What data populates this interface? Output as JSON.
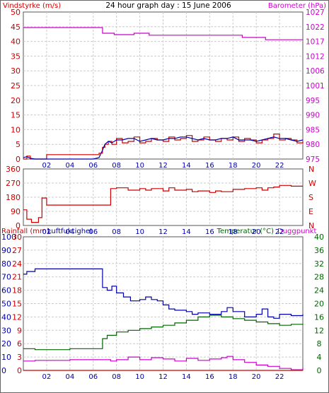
{
  "header": {
    "title": "24 hour graph day : 15 June 2006",
    "left_label": "Vindstyrke (m/s)",
    "right_label": "Barometer (hPa)"
  },
  "colors": {
    "wind": "#cc0000",
    "gust": "#0000aa",
    "barometer": "#cc00cc",
    "direction": "#cc0000",
    "humidity": "#0000aa",
    "temperature": "#006600",
    "dewpoint": "#cc00cc",
    "rain": "#cc0000",
    "frame": "#555555",
    "grid": "#cccccc",
    "xtick": "#0000aa"
  },
  "chart_data": [
    {
      "type": "line",
      "title": "24 hour graph day : 15 June 2006",
      "x_ticks": [
        "02",
        "04",
        "06",
        "08",
        "10",
        "12",
        "14",
        "16",
        "18",
        "20",
        "22"
      ],
      "xlim": [
        0,
        24
      ],
      "y_left": {
        "label": "Vindstyrke (m/s)",
        "ticks": [
          "0",
          "5",
          "10",
          "15",
          "20",
          "25",
          "30",
          "35",
          "40",
          "45",
          "50"
        ],
        "ylim": [
          0,
          50
        ]
      },
      "y_right": {
        "label": "Barometer (hPa)",
        "ticks": [
          "975",
          "980",
          "985",
          "990",
          "995",
          "1001",
          "1006",
          "1012",
          "1017",
          "1022",
          "1027"
        ],
        "ylim": [
          975,
          1027
        ]
      },
      "series": [
        {
          "key": "wind",
          "axis": "left",
          "step": true,
          "x": [
            0,
            0.3,
            0.6,
            1,
            2,
            3,
            4,
            5,
            6,
            6.5,
            6.8,
            7,
            7.3,
            7.6,
            8,
            8.5,
            9,
            9.5,
            10,
            10.5,
            11,
            11.5,
            12,
            12.5,
            13,
            13.5,
            14,
            14.5,
            15,
            15.5,
            16,
            16.5,
            17,
            17.5,
            18,
            18.5,
            19,
            19.5,
            20,
            20.5,
            21,
            21.5,
            22,
            22.5,
            23,
            23.5,
            24
          ],
          "y": [
            0,
            1,
            0,
            0,
            1.5,
            1.5,
            1.5,
            1.5,
            1.5,
            2,
            4,
            5,
            6,
            5,
            7,
            5.5,
            6,
            7.5,
            5.5,
            6,
            7,
            6.5,
            6,
            7.5,
            6.5,
            7,
            8,
            6,
            6.5,
            7.5,
            6.5,
            6,
            7,
            6.5,
            7.5,
            6,
            7,
            6.5,
            5.5,
            6.5,
            7,
            8.5,
            6.5,
            7,
            6.5,
            5.5,
            6
          ]
        },
        {
          "key": "gust",
          "axis": "left",
          "step": false,
          "x": [
            0,
            0.3,
            0.6,
            1,
            2,
            3,
            4,
            5,
            6,
            6.5,
            6.8,
            7,
            7.3,
            7.6,
            8,
            8.5,
            9,
            9.5,
            10,
            10.5,
            11,
            11.5,
            12,
            12.5,
            13,
            13.5,
            14,
            14.5,
            15,
            15.5,
            16,
            16.5,
            17,
            17.5,
            18,
            18.5,
            19,
            19.5,
            20,
            20.5,
            21,
            21.5,
            22,
            22.5,
            23,
            23.5,
            24
          ],
          "y": [
            0.5,
            0.8,
            0.3,
            0,
            0,
            0,
            0,
            0,
            0,
            0.5,
            3,
            5,
            6,
            5.5,
            6.5,
            6.5,
            7,
            7,
            6,
            6.5,
            7,
            6.5,
            6.5,
            7,
            7,
            7.5,
            7.5,
            7,
            6.5,
            7,
            6.5,
            6.5,
            7,
            7,
            7.5,
            6.5,
            6.5,
            6.5,
            6,
            6.5,
            7,
            7.5,
            7,
            7,
            6.5,
            6,
            6.5
          ]
        },
        {
          "key": "barometer",
          "axis": "right",
          "step": true,
          "x": [
            0,
            6.8,
            7.8,
            9.5,
            10.8,
            18.8,
            20.8,
            24
          ],
          "y": [
            1021.5,
            1019.5,
            1019,
            1019.5,
            1018.8,
            1018,
            1017.2,
            1017.2
          ]
        }
      ]
    },
    {
      "type": "line",
      "x_ticks": [
        "02",
        "04",
        "06",
        "08",
        "10",
        "12",
        "14",
        "16",
        "18",
        "20",
        "22"
      ],
      "xlim": [
        0,
        24
      ],
      "y_left": {
        "ticks": [
          "0",
          "90",
          "180",
          "270",
          "360"
        ],
        "ylim": [
          0,
          360
        ]
      },
      "y_right": {
        "ticks": [
          "N",
          "E",
          "S",
          "W",
          "N"
        ]
      },
      "series": [
        {
          "key": "direction",
          "axis": "left",
          "step": true,
          "x": [
            0,
            0.3,
            0.7,
            1.3,
            1.6,
            2,
            4,
            6,
            6.8,
            7.5,
            8,
            9,
            10,
            10.5,
            11,
            12,
            12.5,
            13,
            14,
            14.5,
            15,
            16,
            16.5,
            17,
            18,
            19,
            20,
            20.5,
            21,
            21.5,
            22,
            23,
            24
          ],
          "y": [
            100,
            40,
            20,
            50,
            175,
            130,
            130,
            130,
            130,
            235,
            240,
            225,
            235,
            225,
            235,
            220,
            240,
            225,
            230,
            215,
            220,
            210,
            220,
            215,
            230,
            235,
            240,
            225,
            240,
            245,
            255,
            250,
            250
          ]
        }
      ]
    },
    {
      "type": "line",
      "x_ticks": [
        "02",
        "04",
        "06",
        "08",
        "10",
        "12",
        "14",
        "16",
        "18",
        "20",
        "22"
      ],
      "xlim": [
        0,
        24
      ],
      "header_left": [
        "Rainfall (mm)",
        "Luftfuktighet"
      ],
      "header_right": [
        "Temperatur (°C)",
        "Duggpunkt"
      ],
      "axes": {
        "rainfall": {
          "label": "Rainfall (mm)",
          "ticks": [
            "0",
            "3",
            "6",
            "9",
            "12",
            "15",
            "18",
            "21",
            "24",
            "27",
            "30"
          ],
          "ylim": [
            0,
            30
          ]
        },
        "humidity": {
          "label": "Luftfuktighet",
          "ticks": [
            "0",
            "10",
            "20",
            "30",
            "40",
            "50",
            "60",
            "70",
            "80",
            "90",
            "100"
          ],
          "ylim": [
            0,
            100
          ]
        },
        "temperature": {
          "label": "Temperatur (°C)",
          "ticks": [
            "0",
            "4",
            "8",
            "12",
            "16",
            "20",
            "24",
            "28",
            "32",
            "36",
            "40"
          ],
          "ylim": [
            0,
            40
          ]
        }
      },
      "series": [
        {
          "key": "humidity",
          "axis": "humidity",
          "step": true,
          "x": [
            0,
            0.3,
            1,
            6.8,
            7.2,
            7.6,
            8,
            8.6,
            9.2,
            10,
            10.5,
            11,
            11.5,
            12,
            12.5,
            13,
            14,
            14.5,
            15,
            16,
            17,
            17.5,
            18,
            19,
            20,
            20.5,
            21,
            21.5,
            22,
            23,
            24
          ],
          "y": [
            72,
            74,
            76,
            62,
            60,
            63,
            58,
            55,
            52,
            53,
            55,
            53,
            52,
            49,
            46,
            45,
            44,
            42,
            43,
            42,
            44,
            47,
            44,
            40,
            42,
            46,
            40,
            39,
            42,
            41,
            42
          ]
        },
        {
          "key": "temperature",
          "axis": "temperature",
          "step": true,
          "x": [
            0,
            1,
            4,
            6.8,
            7.2,
            8,
            9,
            10,
            11,
            12,
            13,
            14,
            15,
            16,
            17,
            18,
            19,
            20,
            21,
            22,
            23,
            24
          ],
          "y": [
            6.5,
            6.2,
            6.5,
            9.5,
            10.5,
            11.5,
            12,
            12.5,
            13,
            13.5,
            14.2,
            15,
            16,
            16.5,
            16,
            15.5,
            15,
            14.5,
            14,
            13.5,
            13.8,
            14
          ]
        },
        {
          "key": "dewpoint",
          "axis": "temperature",
          "step": true,
          "x": [
            0,
            1,
            4,
            6.8,
            7.5,
            8,
            9,
            10,
            11,
            12,
            13,
            14,
            15,
            16,
            17,
            17.5,
            18,
            19,
            20,
            21,
            22,
            23,
            24
          ],
          "y": [
            2.8,
            3,
            3.2,
            3.2,
            2.8,
            3.2,
            4,
            3.2,
            3.8,
            3.4,
            2.8,
            3.6,
            3,
            3.4,
            3.8,
            4.2,
            3.2,
            2.4,
            1.6,
            1.2,
            0.6,
            0.2,
            0.8
          ]
        },
        {
          "key": "rain",
          "axis": "rainfall",
          "step": true,
          "x": [
            0,
            24
          ],
          "y": [
            0,
            0
          ]
        }
      ]
    }
  ]
}
